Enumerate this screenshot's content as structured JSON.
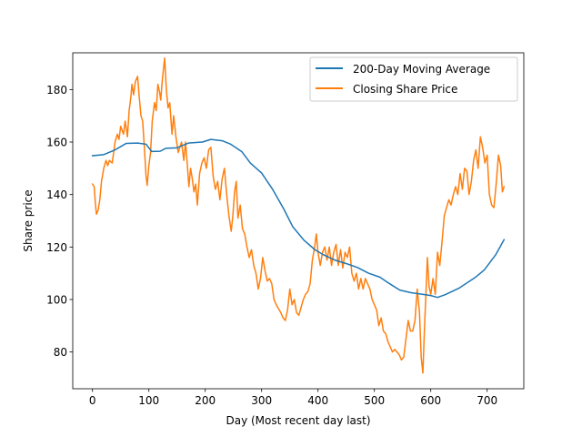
{
  "chart_data": {
    "type": "line",
    "title": "",
    "xlabel": "Day (Most recent day last)",
    "ylabel": "Share price",
    "xlim": [
      -35,
      765
    ],
    "ylim": [
      66,
      194
    ],
    "xticks": [
      0,
      100,
      200,
      300,
      400,
      500,
      600,
      700
    ],
    "yticks": [
      80,
      100,
      120,
      140,
      160,
      180
    ],
    "grid": false,
    "legend_position": "top-right",
    "series": [
      {
        "name": "200-Day Moving Average",
        "color": "#1f77b4",
        "points": [
          [
            0,
            154.8
          ],
          [
            20,
            155.2
          ],
          [
            40,
            157.0
          ],
          [
            60,
            159.5
          ],
          [
            80,
            159.6
          ],
          [
            95,
            159.2
          ],
          [
            105,
            156.4
          ],
          [
            120,
            156.5
          ],
          [
            130,
            157.6
          ],
          [
            150,
            157.8
          ],
          [
            170,
            159.6
          ],
          [
            195,
            160.0
          ],
          [
            210,
            161.0
          ],
          [
            230,
            160.5
          ],
          [
            245,
            159.2
          ],
          [
            265,
            156.3
          ],
          [
            280,
            152.0
          ],
          [
            300,
            148.2
          ],
          [
            320,
            141.8
          ],
          [
            340,
            134.2
          ],
          [
            355,
            127.8
          ],
          [
            375,
            122.6
          ],
          [
            395,
            118.9
          ],
          [
            410,
            117.0
          ],
          [
            430,
            115.0
          ],
          [
            450,
            113.7
          ],
          [
            470,
            112.2
          ],
          [
            490,
            110.0
          ],
          [
            510,
            108.5
          ],
          [
            525,
            106.3
          ],
          [
            545,
            103.6
          ],
          [
            565,
            102.6
          ],
          [
            585,
            102.0
          ],
          [
            600,
            101.5
          ],
          [
            612,
            100.8
          ],
          [
            625,
            101.8
          ],
          [
            650,
            104.3
          ],
          [
            680,
            108.6
          ],
          [
            695,
            111.3
          ],
          [
            715,
            117.0
          ],
          [
            730,
            122.8
          ]
        ]
      },
      {
        "name": "Closing Share Price",
        "color": "#ff7f0e",
        "points": [
          [
            0,
            144.0
          ],
          [
            3,
            143.0
          ],
          [
            5,
            137.0
          ],
          [
            7,
            132.5
          ],
          [
            10,
            134.0
          ],
          [
            13,
            138.0
          ],
          [
            16,
            145.0
          ],
          [
            20,
            150.0
          ],
          [
            24,
            153.0
          ],
          [
            27,
            151.0
          ],
          [
            30,
            153.0
          ],
          [
            35,
            152.0
          ],
          [
            40,
            160.0
          ],
          [
            44,
            163.0
          ],
          [
            47,
            161.0
          ],
          [
            50,
            166.0
          ],
          [
            55,
            163.0
          ],
          [
            58,
            168.0
          ],
          [
            62,
            162.0
          ],
          [
            65,
            172.0
          ],
          [
            68,
            177.0
          ],
          [
            70,
            182.0
          ],
          [
            73,
            178.0
          ],
          [
            76,
            183.0
          ],
          [
            80,
            185.0
          ],
          [
            83,
            177.0
          ],
          [
            86,
            170.0
          ],
          [
            89,
            168.0
          ],
          [
            92,
            158.0
          ],
          [
            95,
            147.0
          ],
          [
            97,
            143.5
          ],
          [
            100,
            151.0
          ],
          [
            103,
            156.0
          ],
          [
            106,
            168.0
          ],
          [
            110,
            175.0
          ],
          [
            113,
            172.0
          ],
          [
            116,
            182.0
          ],
          [
            119,
            179.0
          ],
          [
            121,
            176.0
          ],
          [
            124,
            184.0
          ],
          [
            128,
            192.0
          ],
          [
            131,
            180.0
          ],
          [
            134,
            173.0
          ],
          [
            137,
            175.0
          ],
          [
            141,
            163.0
          ],
          [
            144,
            170.0
          ],
          [
            148,
            162.0
          ],
          [
            152,
            156.0
          ],
          [
            155,
            158.0
          ],
          [
            158,
            160.0
          ],
          [
            162,
            153.0
          ],
          [
            165,
            160.0
          ],
          [
            168,
            152.0
          ],
          [
            171,
            143.0
          ],
          [
            174,
            150.0
          ],
          [
            177,
            146.0
          ],
          [
            180,
            141.0
          ],
          [
            183,
            144.0
          ],
          [
            186,
            136.0
          ],
          [
            190,
            148.0
          ],
          [
            194,
            152.0
          ],
          [
            198,
            154.0
          ],
          [
            202,
            150.0
          ],
          [
            206,
            157.0
          ],
          [
            210,
            158.0
          ],
          [
            214,
            147.0
          ],
          [
            218,
            142.0
          ],
          [
            222,
            145.0
          ],
          [
            226,
            138.0
          ],
          [
            230,
            146.0
          ],
          [
            234,
            150.0
          ],
          [
            238,
            140.0
          ],
          [
            242,
            132.0
          ],
          [
            246,
            126.0
          ],
          [
            249,
            132.0
          ],
          [
            252,
            141.0
          ],
          [
            255,
            145.0
          ],
          [
            258,
            131.0
          ],
          [
            262,
            136.0
          ],
          [
            266,
            127.0
          ],
          [
            270,
            125.0
          ],
          [
            274,
            120.0
          ],
          [
            278,
            116.0
          ],
          [
            282,
            119.0
          ],
          [
            286,
            113.0
          ],
          [
            290,
            110.0
          ],
          [
            294,
            104.0
          ],
          [
            298,
            108.0
          ],
          [
            302,
            116.0
          ],
          [
            306,
            111.0
          ],
          [
            310,
            107.0
          ],
          [
            314,
            108.0
          ],
          [
            318,
            106.0
          ],
          [
            322,
            100.0
          ],
          [
            326,
            98.0
          ],
          [
            330,
            96.5
          ],
          [
            334,
            95.0
          ],
          [
            338,
            93.0
          ],
          [
            342,
            92.0
          ],
          [
            346,
            96.0
          ],
          [
            350,
            104.0
          ],
          [
            354,
            98.0
          ],
          [
            358,
            100.0
          ],
          [
            362,
            95.0
          ],
          [
            366,
            94.0
          ],
          [
            370,
            97.0
          ],
          [
            374,
            100.0
          ],
          [
            378,
            102.0
          ],
          [
            382,
            103.0
          ],
          [
            386,
            106.0
          ],
          [
            390,
            115.0
          ],
          [
            394,
            120.0
          ],
          [
            397,
            125.0
          ],
          [
            400,
            118.0
          ],
          [
            404,
            113.0
          ],
          [
            408,
            118.0
          ],
          [
            412,
            120.0
          ],
          [
            416,
            115.0
          ],
          [
            420,
            120.0
          ],
          [
            424,
            113.0
          ],
          [
            428,
            118.0
          ],
          [
            432,
            121.0
          ],
          [
            436,
            113.0
          ],
          [
            440,
            119.0
          ],
          [
            444,
            112.0
          ],
          [
            448,
            118.0
          ],
          [
            452,
            116.0
          ],
          [
            456,
            120.0
          ],
          [
            460,
            110.0
          ],
          [
            464,
            107.0
          ],
          [
            468,
            110.0
          ],
          [
            472,
            104.0
          ],
          [
            476,
            108.0
          ],
          [
            480,
            104.0
          ],
          [
            484,
            108.0
          ],
          [
            488,
            106.0
          ],
          [
            492,
            104.0
          ],
          [
            496,
            100.0
          ],
          [
            500,
            98.0
          ],
          [
            504,
            96.0
          ],
          [
            508,
            90.0
          ],
          [
            512,
            93.0
          ],
          [
            516,
            88.0
          ],
          [
            520,
            87.0
          ],
          [
            524,
            84.0
          ],
          [
            528,
            82.0
          ],
          [
            532,
            80.0
          ],
          [
            536,
            81.0
          ],
          [
            540,
            80.0
          ],
          [
            544,
            79.0
          ],
          [
            548,
            77.0
          ],
          [
            552,
            78.0
          ],
          [
            556,
            85.0
          ],
          [
            560,
            92.0
          ],
          [
            564,
            88.0
          ],
          [
            568,
            88.0
          ],
          [
            572,
            92.0
          ],
          [
            576,
            104.0
          ],
          [
            580,
            95.0
          ],
          [
            583,
            78.0
          ],
          [
            586,
            72.0
          ],
          [
            589,
            90.0
          ],
          [
            591,
            100.0
          ],
          [
            594,
            116.0
          ],
          [
            597,
            105.0
          ],
          [
            600,
            102.0
          ],
          [
            604,
            108.0
          ],
          [
            608,
            102.0
          ],
          [
            612,
            118.0
          ],
          [
            616,
            113.0
          ],
          [
            620,
            122.0
          ],
          [
            624,
            132.0
          ],
          [
            628,
            135.0
          ],
          [
            632,
            138.0
          ],
          [
            636,
            136.0
          ],
          [
            640,
            140.0
          ],
          [
            644,
            143.0
          ],
          [
            648,
            140.0
          ],
          [
            652,
            148.0
          ],
          [
            656,
            142.0
          ],
          [
            660,
            150.0
          ],
          [
            664,
            149.0
          ],
          [
            668,
            140.0
          ],
          [
            672,
            145.0
          ],
          [
            676,
            153.0
          ],
          [
            680,
            157.0
          ],
          [
            684,
            150.0
          ],
          [
            688,
            162.0
          ],
          [
            692,
            158.0
          ],
          [
            696,
            152.0
          ],
          [
            700,
            155.0
          ],
          [
            704,
            140.0
          ],
          [
            708,
            136.0
          ],
          [
            712,
            135.0
          ],
          [
            716,
            144.0
          ],
          [
            720,
            155.0
          ],
          [
            724,
            151.0
          ],
          [
            727,
            141.0
          ],
          [
            730,
            143.0
          ]
        ]
      }
    ]
  }
}
